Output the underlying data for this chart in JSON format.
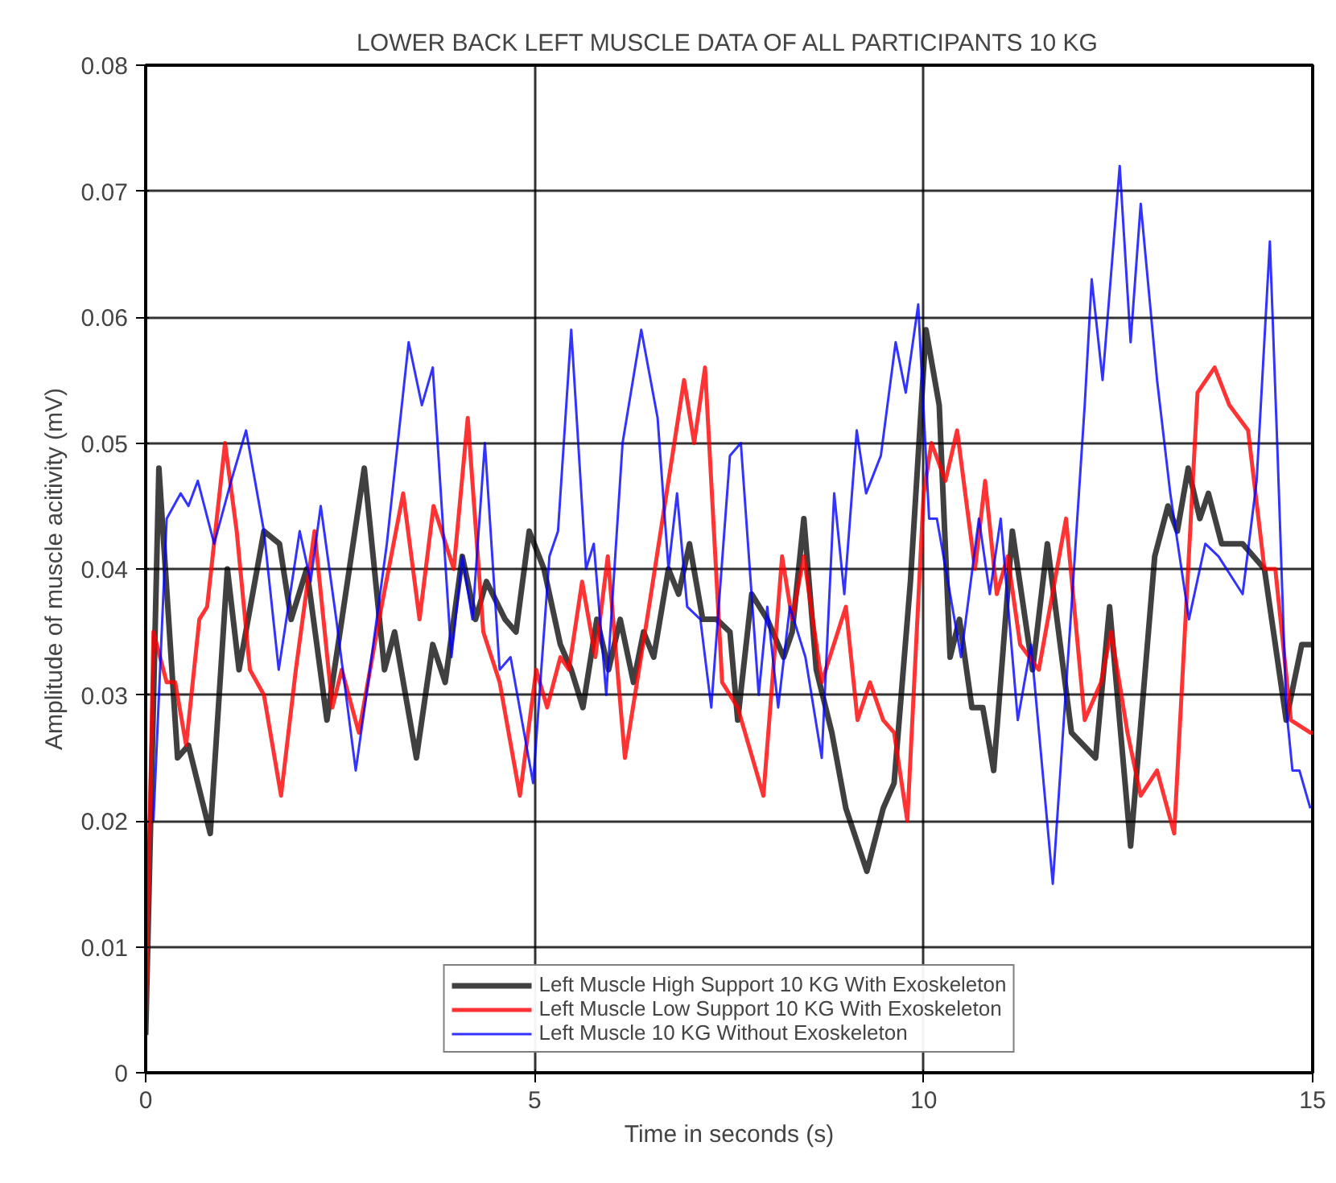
{
  "chart_data": {
    "type": "line",
    "title": "LOWER BACK LEFT MUSCLE DATA OF ALL PARTICIPANTS 10 KG",
    "xlabel": "Time in seconds (s)",
    "ylabel": "Amplitude of muscle acitivity (mV)",
    "xlim": [
      0,
      15
    ],
    "ylim": [
      0,
      0.08
    ],
    "xticks": [
      0,
      5,
      10,
      15
    ],
    "yticks": [
      0,
      0.01,
      0.02,
      0.03,
      0.04,
      0.05,
      0.06,
      0.07,
      0.08
    ],
    "grid": true,
    "legend": "bottom",
    "marker": "none",
    "line_style": "solid",
    "series": [
      {
        "name": "Left Muscle High Support 10 KG With Exoskeleton",
        "color": "#000000",
        "x": [
          0,
          0.17,
          0.41,
          0.55,
          0.83,
          1.05,
          1.2,
          1.52,
          1.72,
          1.87,
          2.07,
          2.33,
          2.81,
          3.07,
          3.2,
          3.48,
          3.69,
          3.85,
          4.07,
          4.24,
          4.38,
          4.62,
          4.76,
          4.93,
          5.12,
          5.33,
          5.47,
          5.62,
          5.8,
          5.95,
          6.1,
          6.27,
          6.4,
          6.53,
          6.72,
          6.85,
          6.99,
          7.16,
          7.34,
          7.51,
          7.61,
          7.79,
          7.99,
          8.2,
          8.31,
          8.46,
          8.62,
          8.82,
          9.0,
          9.27,
          9.48,
          9.62,
          9.83,
          10.03,
          10.2,
          10.34,
          10.46,
          10.62,
          10.76,
          10.9,
          11.14,
          11.4,
          11.59,
          11.9,
          12.21,
          12.39,
          12.66,
          12.97,
          13.14,
          13.26,
          13.4,
          13.55,
          13.66,
          13.83,
          14.1,
          14.38,
          14.66,
          14.86,
          15
        ],
        "values": [
          0.003,
          0.048,
          0.025,
          0.026,
          0.019,
          0.04,
          0.032,
          0.043,
          0.042,
          0.036,
          0.04,
          0.028,
          0.048,
          0.032,
          0.035,
          0.025,
          0.034,
          0.031,
          0.041,
          0.036,
          0.039,
          0.036,
          0.035,
          0.043,
          0.04,
          0.034,
          0.032,
          0.029,
          0.036,
          0.032,
          0.036,
          0.031,
          0.035,
          0.033,
          0.04,
          0.038,
          0.042,
          0.036,
          0.036,
          0.035,
          0.028,
          0.038,
          0.036,
          0.033,
          0.035,
          0.044,
          0.032,
          0.027,
          0.021,
          0.016,
          0.021,
          0.023,
          0.039,
          0.059,
          0.053,
          0.033,
          0.036,
          0.029,
          0.029,
          0.024,
          0.043,
          0.032,
          0.042,
          0.027,
          0.025,
          0.037,
          0.018,
          0.041,
          0.045,
          0.043,
          0.048,
          0.044,
          0.046,
          0.042,
          0.042,
          0.04,
          0.028,
          0.034,
          0.034
        ]
      },
      {
        "name": "Left Muscle Low Support 10 KG With Exoskeleton",
        "color": "#ff0000",
        "x": [
          0,
          0.1,
          0.27,
          0.38,
          0.52,
          0.69,
          0.79,
          1.02,
          1.17,
          1.34,
          1.52,
          1.74,
          1.93,
          2.17,
          2.4,
          2.52,
          2.74,
          3.0,
          3.31,
          3.52,
          3.7,
          3.96,
          4.14,
          4.34,
          4.55,
          4.81,
          5.02,
          5.16,
          5.33,
          5.44,
          5.61,
          5.78,
          5.94,
          6.16,
          6.47,
          6.92,
          7.05,
          7.19,
          7.41,
          7.61,
          7.94,
          8.18,
          8.31,
          8.46,
          8.69,
          9.0,
          9.15,
          9.31,
          9.48,
          9.62,
          9.79,
          10.0,
          10.1,
          10.28,
          10.43,
          10.66,
          10.79,
          10.94,
          11.08,
          11.24,
          11.48,
          11.83,
          12.07,
          12.28,
          12.41,
          12.62,
          12.79,
          13.0,
          13.22,
          13.52,
          13.74,
          13.93,
          14.17,
          14.38,
          14.52,
          14.72,
          14.97,
          15
        ],
        "values": [
          0.003,
          0.035,
          0.031,
          0.031,
          0.026,
          0.036,
          0.037,
          0.05,
          0.043,
          0.032,
          0.03,
          0.022,
          0.032,
          0.043,
          0.029,
          0.032,
          0.027,
          0.036,
          0.046,
          0.036,
          0.045,
          0.04,
          0.052,
          0.035,
          0.031,
          0.022,
          0.032,
          0.029,
          0.033,
          0.032,
          0.039,
          0.033,
          0.041,
          0.025,
          0.037,
          0.055,
          0.05,
          0.056,
          0.031,
          0.029,
          0.022,
          0.041,
          0.036,
          0.041,
          0.031,
          0.037,
          0.028,
          0.031,
          0.028,
          0.027,
          0.02,
          0.046,
          0.05,
          0.047,
          0.051,
          0.04,
          0.047,
          0.038,
          0.041,
          0.034,
          0.032,
          0.044,
          0.028,
          0.031,
          0.035,
          0.027,
          0.022,
          0.024,
          0.019,
          0.054,
          0.056,
          0.053,
          0.051,
          0.04,
          0.04,
          0.028,
          0.027,
          0.027
        ]
      },
      {
        "name": "Left Muscle 10 KG Without Exoskeleton",
        "color": "#0000ff",
        "x": [
          0.1,
          0.27,
          0.45,
          0.55,
          0.67,
          0.88,
          1.1,
          1.29,
          1.52,
          1.71,
          1.98,
          2.12,
          2.25,
          2.45,
          2.7,
          2.86,
          3.1,
          3.38,
          3.55,
          3.69,
          3.93,
          4.07,
          4.2,
          4.36,
          4.55,
          4.69,
          4.98,
          5.19,
          5.3,
          5.47,
          5.66,
          5.76,
          5.92,
          6.13,
          6.37,
          6.58,
          6.72,
          6.83,
          6.96,
          7.13,
          7.27,
          7.51,
          7.65,
          7.88,
          7.99,
          8.13,
          8.28,
          8.48,
          8.69,
          8.85,
          8.98,
          9.14,
          9.26,
          9.45,
          9.64,
          9.77,
          9.93,
          10.07,
          10.17,
          10.34,
          10.48,
          10.71,
          10.85,
          10.99,
          11.21,
          11.38,
          11.66,
          11.9,
          12.07,
          12.16,
          12.3,
          12.52,
          12.66,
          12.79,
          13.0,
          13.17,
          13.41,
          13.62,
          13.79,
          14.1,
          14.28,
          14.45,
          14.55,
          14.66,
          14.74,
          14.83,
          14.97
        ],
        "values": [
          0.02,
          0.044,
          0.046,
          0.045,
          0.047,
          0.042,
          0.047,
          0.051,
          0.043,
          0.032,
          0.043,
          0.039,
          0.045,
          0.036,
          0.024,
          0.031,
          0.042,
          0.058,
          0.053,
          0.056,
          0.033,
          0.041,
          0.036,
          0.05,
          0.032,
          0.033,
          0.023,
          0.041,
          0.043,
          0.059,
          0.04,
          0.042,
          0.03,
          0.05,
          0.059,
          0.052,
          0.04,
          0.046,
          0.037,
          0.036,
          0.029,
          0.049,
          0.05,
          0.03,
          0.037,
          0.029,
          0.037,
          0.033,
          0.025,
          0.046,
          0.038,
          0.051,
          0.046,
          0.049,
          0.058,
          0.054,
          0.061,
          0.044,
          0.044,
          0.038,
          0.033,
          0.044,
          0.038,
          0.044,
          0.028,
          0.034,
          0.015,
          0.037,
          0.053,
          0.063,
          0.055,
          0.072,
          0.058,
          0.069,
          0.055,
          0.046,
          0.036,
          0.042,
          0.041,
          0.038,
          0.047,
          0.066,
          0.049,
          0.029,
          0.024,
          0.024,
          0.021
        ]
      }
    ]
  }
}
